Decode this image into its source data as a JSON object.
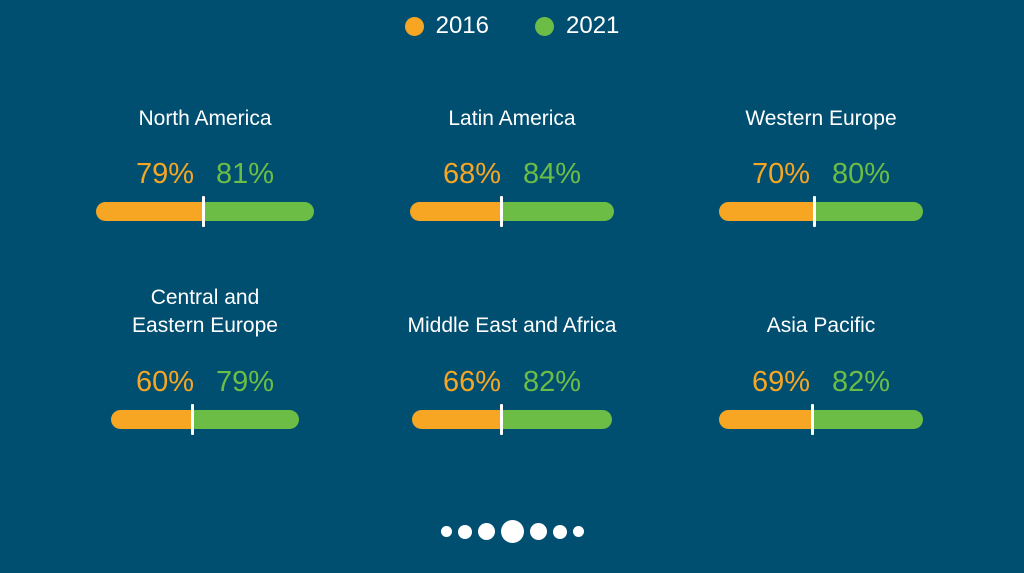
{
  "legend": {
    "items": [
      {
        "label": "2016",
        "color": "#f6a623"
      },
      {
        "label": "2021",
        "color": "#6cbd45"
      }
    ]
  },
  "chart_data": {
    "type": "bar",
    "series": [
      {
        "name": "2016",
        "color": "#f6a623"
      },
      {
        "name": "2021",
        "color": "#6cbd45"
      }
    ],
    "regions": [
      {
        "name_lines": [
          "North America"
        ],
        "v2016": 79,
        "v2021": 81,
        "label2016": "79%",
        "label2021": "81%"
      },
      {
        "name_lines": [
          "Latin America"
        ],
        "v2016": 68,
        "v2021": 84,
        "label2016": "68%",
        "label2021": "84%"
      },
      {
        "name_lines": [
          "Western Europe"
        ],
        "v2016": 70,
        "v2021": 80,
        "label2016": "70%",
        "label2021": "80%"
      },
      {
        "name_lines": [
          "Central and",
          "Eastern Europe"
        ],
        "v2016": 60,
        "v2021": 79,
        "label2016": "60%",
        "label2021": "79%"
      },
      {
        "name_lines": [
          "Middle East and Africa"
        ],
        "v2016": 66,
        "v2021": 82,
        "label2016": "66%",
        "label2021": "82%"
      },
      {
        "name_lines": [
          "Asia Pacific"
        ],
        "v2016": 69,
        "v2021": 82,
        "label2016": "69%",
        "label2021": "82%"
      }
    ]
  },
  "pager": {
    "dot_count": 7,
    "active_index": 3
  }
}
